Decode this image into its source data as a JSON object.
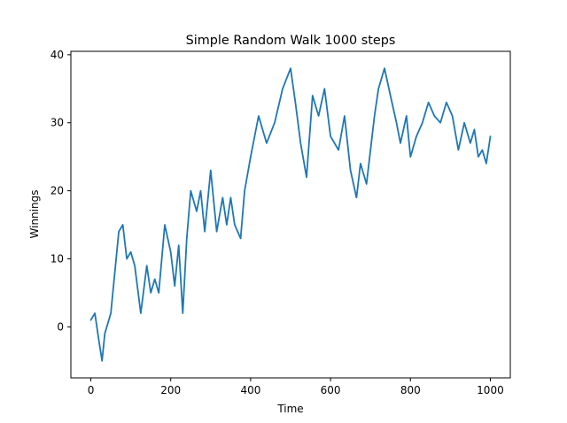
{
  "chart_data": {
    "type": "line",
    "title": "Simple Random Walk 1000 steps",
    "xlabel": "Time",
    "ylabel": "Winnings",
    "xlim": [
      -50,
      1050
    ],
    "ylim": [
      -7.5,
      40.5
    ],
    "x_ticks": [
      0,
      200,
      400,
      600,
      800,
      1000
    ],
    "y_ticks": [
      0,
      10,
      20,
      30,
      40
    ],
    "grid": false,
    "legend": "none",
    "line_color": "#1f77b4",
    "series": [
      {
        "x": [
          0,
          10,
          20,
          28,
          35,
          50,
          60,
          70,
          80,
          90,
          100,
          110,
          125,
          140,
          150,
          160,
          170,
          185,
          200,
          210,
          220,
          230,
          240,
          250,
          265,
          275,
          285,
          300,
          315,
          330,
          340,
          350,
          360,
          375,
          385,
          400,
          420,
          440,
          460,
          480,
          500,
          512,
          525,
          540,
          555,
          570,
          585,
          600,
          620,
          635,
          650,
          665,
          675,
          690,
          710,
          720,
          735,
          750,
          765,
          775,
          790,
          800,
          815,
          830,
          845,
          860,
          875,
          890,
          905,
          920,
          935,
          950,
          960,
          970,
          980,
          990,
          1000
        ],
        "y": [
          1,
          2,
          -2,
          -5,
          -1,
          2,
          8,
          14,
          15,
          10,
          11,
          9,
          2,
          9,
          5,
          7,
          5,
          15,
          11,
          6,
          12,
          2,
          13,
          20,
          17,
          20,
          14,
          23,
          14,
          19,
          15,
          19,
          15,
          13,
          20,
          25,
          31,
          27,
          30,
          35,
          38,
          33,
          27,
          22,
          34,
          31,
          35,
          28,
          26,
          31,
          23,
          19,
          24,
          21,
          31,
          35,
          38,
          34,
          30,
          27,
          31,
          25,
          28,
          30,
          33,
          31,
          30,
          33,
          31,
          26,
          30,
          27,
          29,
          25,
          26,
          24,
          28
        ]
      }
    ]
  }
}
